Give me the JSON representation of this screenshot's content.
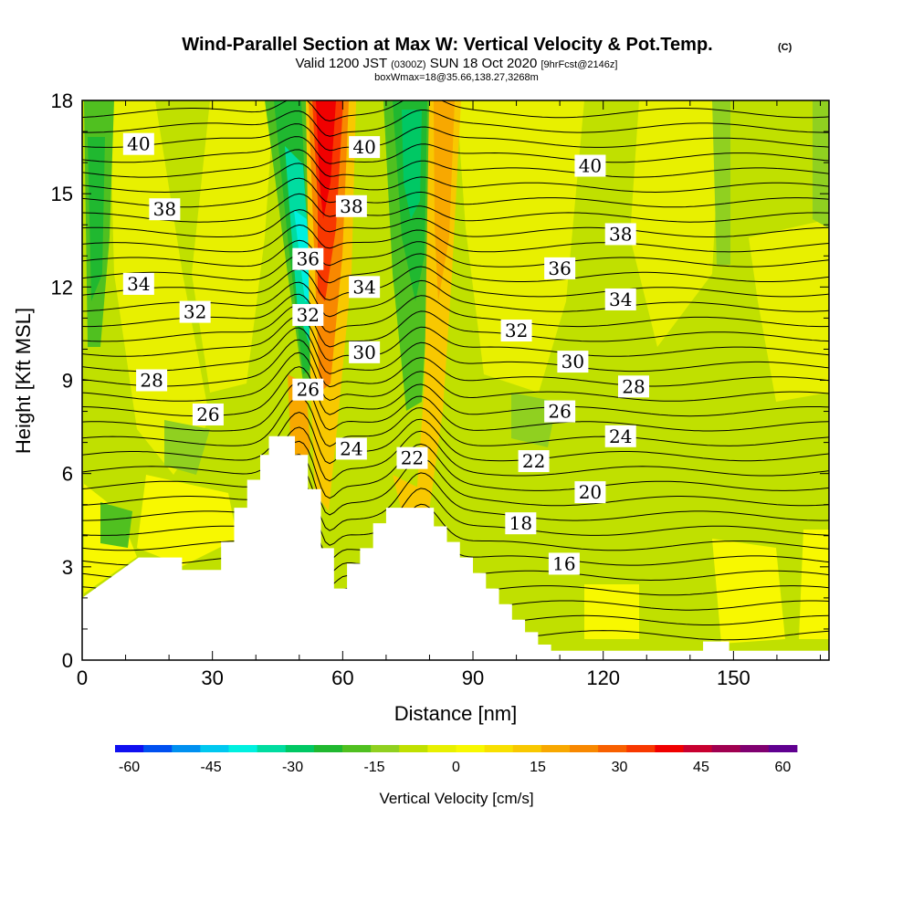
{
  "chart_data": {
    "type": "heatmap",
    "title": "Wind-Parallel Section at Max W: Vertical Velocity & Pot.Temp.",
    "copyright_mark": "(C)",
    "subtitle": {
      "valid_prefix": "Valid 1200 JST",
      "utc": "(0300Z)",
      "date": "SUN 18 Oct 2020",
      "forecast": "[9hrFcst@2146z]"
    },
    "box_info": "boxWmax=18@35.66,138.27,3268m",
    "xlabel": "Distance [nm]",
    "ylabel": "Height [Kft MSL]",
    "xlim": [
      0,
      172
    ],
    "ylim": [
      0,
      18
    ],
    "x_ticks": [
      "0",
      "30",
      "60",
      "90",
      "120",
      "150"
    ],
    "y_ticks": [
      "0",
      "3",
      "6",
      "9",
      "12",
      "15",
      "18"
    ],
    "colorbar": {
      "label": "Vertical Velocity [cm/s]",
      "tick_labels": [
        "-60",
        "-45",
        "-30",
        "-15",
        "0",
        "15",
        "30",
        "45",
        "60"
      ],
      "colors": [
        "#1010f0",
        "#0050f0",
        "#0090f0",
        "#00c8f0",
        "#00f0e0",
        "#00dca0",
        "#00c864",
        "#20b830",
        "#50c020",
        "#90d020",
        "#c0e000",
        "#e8f000",
        "#f8f800",
        "#f8e000",
        "#f8c800",
        "#f8a800",
        "#f88800",
        "#f86000",
        "#f83800",
        "#f00000",
        "#c80030",
        "#a00050",
        "#800070",
        "#600090"
      ]
    },
    "terrain_profile": [
      [
        0,
        2.0
      ],
      [
        3,
        2.3
      ],
      [
        6,
        2.6
      ],
      [
        9,
        2.9
      ],
      [
        13,
        3.3
      ],
      [
        23,
        3.3
      ],
      [
        23,
        2.9
      ],
      [
        32,
        2.9
      ],
      [
        32,
        3.8
      ],
      [
        35,
        3.8
      ],
      [
        35,
        4.9
      ],
      [
        38,
        4.9
      ],
      [
        38,
        5.8
      ],
      [
        41,
        5.8
      ],
      [
        41,
        6.6
      ],
      [
        43,
        6.6
      ],
      [
        43,
        7.2
      ],
      [
        49,
        7.2
      ],
      [
        49,
        6.6
      ],
      [
        52,
        6.6
      ],
      [
        52,
        5.5
      ],
      [
        55,
        5.5
      ],
      [
        55,
        3.6
      ],
      [
        58,
        3.6
      ],
      [
        58,
        2.3
      ],
      [
        61,
        2.3
      ],
      [
        61,
        3.1
      ],
      [
        64,
        3.1
      ],
      [
        64,
        3.6
      ],
      [
        67,
        3.6
      ],
      [
        67,
        4.4
      ],
      [
        70,
        4.4
      ],
      [
        70,
        4.9
      ],
      [
        81,
        4.9
      ],
      [
        81,
        4.3
      ],
      [
        84,
        4.3
      ],
      [
        84,
        3.8
      ],
      [
        87,
        3.8
      ],
      [
        87,
        3.3
      ],
      [
        90,
        3.3
      ],
      [
        90,
        2.8
      ],
      [
        93,
        2.8
      ],
      [
        93,
        2.3
      ],
      [
        96,
        2.3
      ],
      [
        96,
        1.8
      ],
      [
        99,
        1.8
      ],
      [
        99,
        1.3
      ],
      [
        102,
        1.3
      ],
      [
        102,
        0.9
      ],
      [
        105,
        0.9
      ],
      [
        105,
        0.5
      ],
      [
        108,
        0.5
      ],
      [
        108,
        0.3
      ],
      [
        143,
        0.3
      ],
      [
        143,
        0.6
      ],
      [
        149,
        0.6
      ],
      [
        149,
        0.3
      ],
      [
        172,
        0.3
      ]
    ],
    "vertical_velocity_features": [
      {
        "x": [
          48,
          52
        ],
        "y": [
          6.5,
          18
        ],
        "w_cm_s": -30
      },
      {
        "x": [
          53,
          60
        ],
        "y": [
          3.5,
          18
        ],
        "w_cm_s": 45
      },
      {
        "x": [
          74,
          79
        ],
        "y": [
          6,
          18
        ],
        "w_cm_s": -25
      },
      {
        "x": [
          79,
          84
        ],
        "y": [
          5,
          18
        ],
        "w_cm_s": 20
      },
      {
        "x": [
          1,
          6
        ],
        "y": [
          10,
          18
        ],
        "w_cm_s": -15
      }
    ],
    "potential_temperature_contour_labels": [
      {
        "value": "40",
        "x": 13,
        "y": 16.6
      },
      {
        "value": "40",
        "x": 65,
        "y": 16.5
      },
      {
        "value": "40",
        "x": 117,
        "y": 15.9
      },
      {
        "value": "38",
        "x": 19,
        "y": 14.5
      },
      {
        "value": "38",
        "x": 62,
        "y": 14.6
      },
      {
        "value": "38",
        "x": 124,
        "y": 13.7
      },
      {
        "value": "36",
        "x": 52,
        "y": 12.9
      },
      {
        "value": "36",
        "x": 110,
        "y": 12.6
      },
      {
        "value": "34",
        "x": 13,
        "y": 12.1
      },
      {
        "value": "34",
        "x": 65,
        "y": 12.0
      },
      {
        "value": "34",
        "x": 124,
        "y": 11.6
      },
      {
        "value": "32",
        "x": 26,
        "y": 11.2
      },
      {
        "value": "32",
        "x": 52,
        "y": 11.1
      },
      {
        "value": "32",
        "x": 100,
        "y": 10.6
      },
      {
        "value": "30",
        "x": 65,
        "y": 9.9
      },
      {
        "value": "30",
        "x": 113,
        "y": 9.6
      },
      {
        "value": "28",
        "x": 16,
        "y": 9.0
      },
      {
        "value": "28",
        "x": 127,
        "y": 8.8
      },
      {
        "value": "26",
        "x": 29,
        "y": 7.9
      },
      {
        "value": "26",
        "x": 52,
        "y": 8.7
      },
      {
        "value": "26",
        "x": 110,
        "y": 8.0
      },
      {
        "value": "24",
        "x": 62,
        "y": 6.8
      },
      {
        "value": "24",
        "x": 124,
        "y": 7.2
      },
      {
        "value": "22",
        "x": 76,
        "y": 6.5
      },
      {
        "value": "22",
        "x": 104,
        "y": 6.4
      },
      {
        "value": "20",
        "x": 117,
        "y": 5.4
      },
      {
        "value": "18",
        "x": 101,
        "y": 4.4
      },
      {
        "value": "16",
        "x": 111,
        "y": 3.1
      }
    ]
  }
}
